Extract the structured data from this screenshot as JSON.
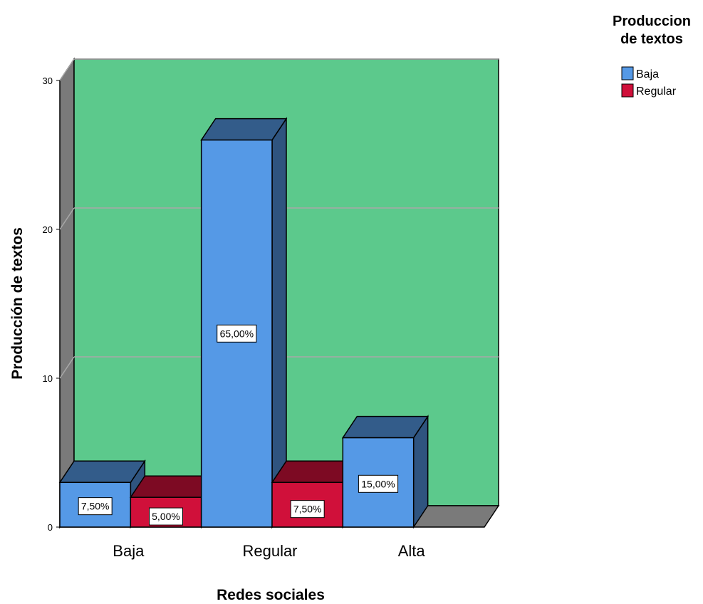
{
  "chart_data": {
    "type": "bar",
    "title": "",
    "xlabel": "Redes sociales",
    "ylabel": "Producción de textos",
    "categories": [
      "Baja",
      "Regular",
      "Alta"
    ],
    "ylim": [
      0,
      30
    ],
    "yticks": [
      0,
      10,
      20,
      30
    ],
    "yticklabels": [
      "0",
      "10",
      "20",
      "30"
    ],
    "grid": true,
    "legend_title_lines": [
      "Produccion",
      "de textos"
    ],
    "legend_position": "top-right",
    "series": [
      {
        "name": "Baja",
        "color": "#5599e6",
        "values": [
          3,
          26,
          6
        ],
        "labels": [
          "7,50%",
          "65,00%",
          "15,00%"
        ]
      },
      {
        "name": "Regular",
        "color": "#d0103a",
        "values": [
          2,
          3,
          null
        ],
        "labels": [
          "5,00%",
          "7,50%",
          null
        ]
      }
    ],
    "background_color": "#5cc98c"
  }
}
